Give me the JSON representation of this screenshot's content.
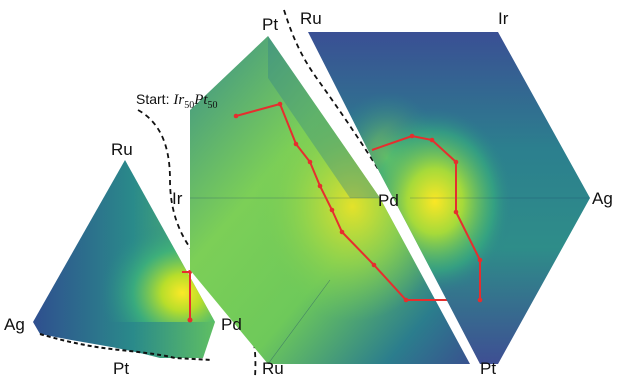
{
  "labels": {
    "small_top": "Ru",
    "small_left": "Ag",
    "small_right": "Pd",
    "small_bottom": "Pt",
    "mid_top": "Pt",
    "mid_left": "Ir",
    "mid_right": "Pd",
    "mid_bottom": "Ru",
    "right_top": "Ir",
    "right_topleft": "Ru",
    "right_right": "Ag",
    "right_bottom": "Pt"
  },
  "start": {
    "prefix": "Start: ",
    "el1": "Ir",
    "sub1": "50",
    "el2": "Pt",
    "sub2": "50"
  },
  "colors": {
    "low": "#3b4b92",
    "mid_low": "#2a7f8e",
    "mid": "#2aa382",
    "mid_high": "#6ec95a",
    "high": "#f5e21f",
    "path": "#e62e2e",
    "divider": "#111111"
  }
}
